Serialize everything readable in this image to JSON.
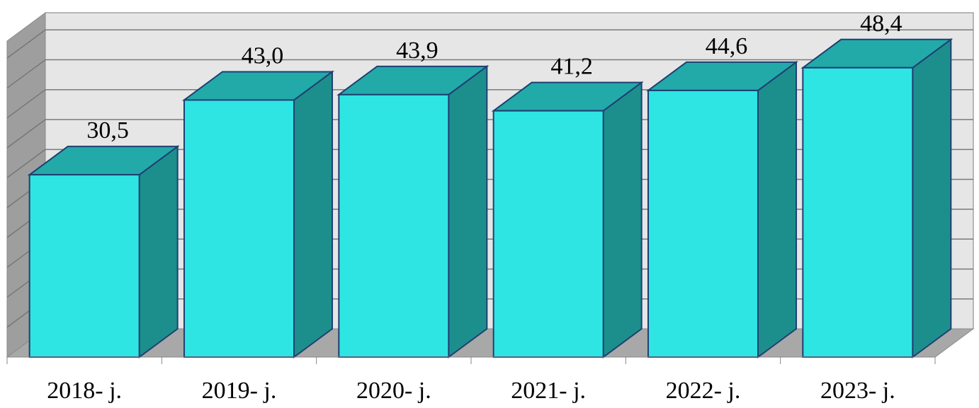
{
  "chart_data": {
    "type": "bar",
    "categories": [
      "2018- j.",
      "2019- j.",
      "2020- j.",
      "2021- j.",
      "2022- j.",
      "2023- j."
    ],
    "values": [
      30.5,
      43.0,
      43.9,
      41.2,
      44.6,
      48.4
    ],
    "value_labels": [
      "30,5",
      "43,0",
      "43,9",
      "41,2",
      "44,6",
      "48,4"
    ],
    "title": "",
    "xlabel": "",
    "ylabel": "",
    "ylim": [
      0,
      55
    ],
    "grid": true,
    "legend": "none",
    "style": "3d-column",
    "colors": {
      "bar_front": "#2EE5E3",
      "bar_top": "#22AAA8",
      "bar_side": "#1C8F8C",
      "bar_outline": "#1F3F73",
      "back_wall": "#E6E6E6",
      "side_wall": "#9E9E9E",
      "floor": "#A8A8A8",
      "gridline": "#7A7A7A"
    }
  }
}
